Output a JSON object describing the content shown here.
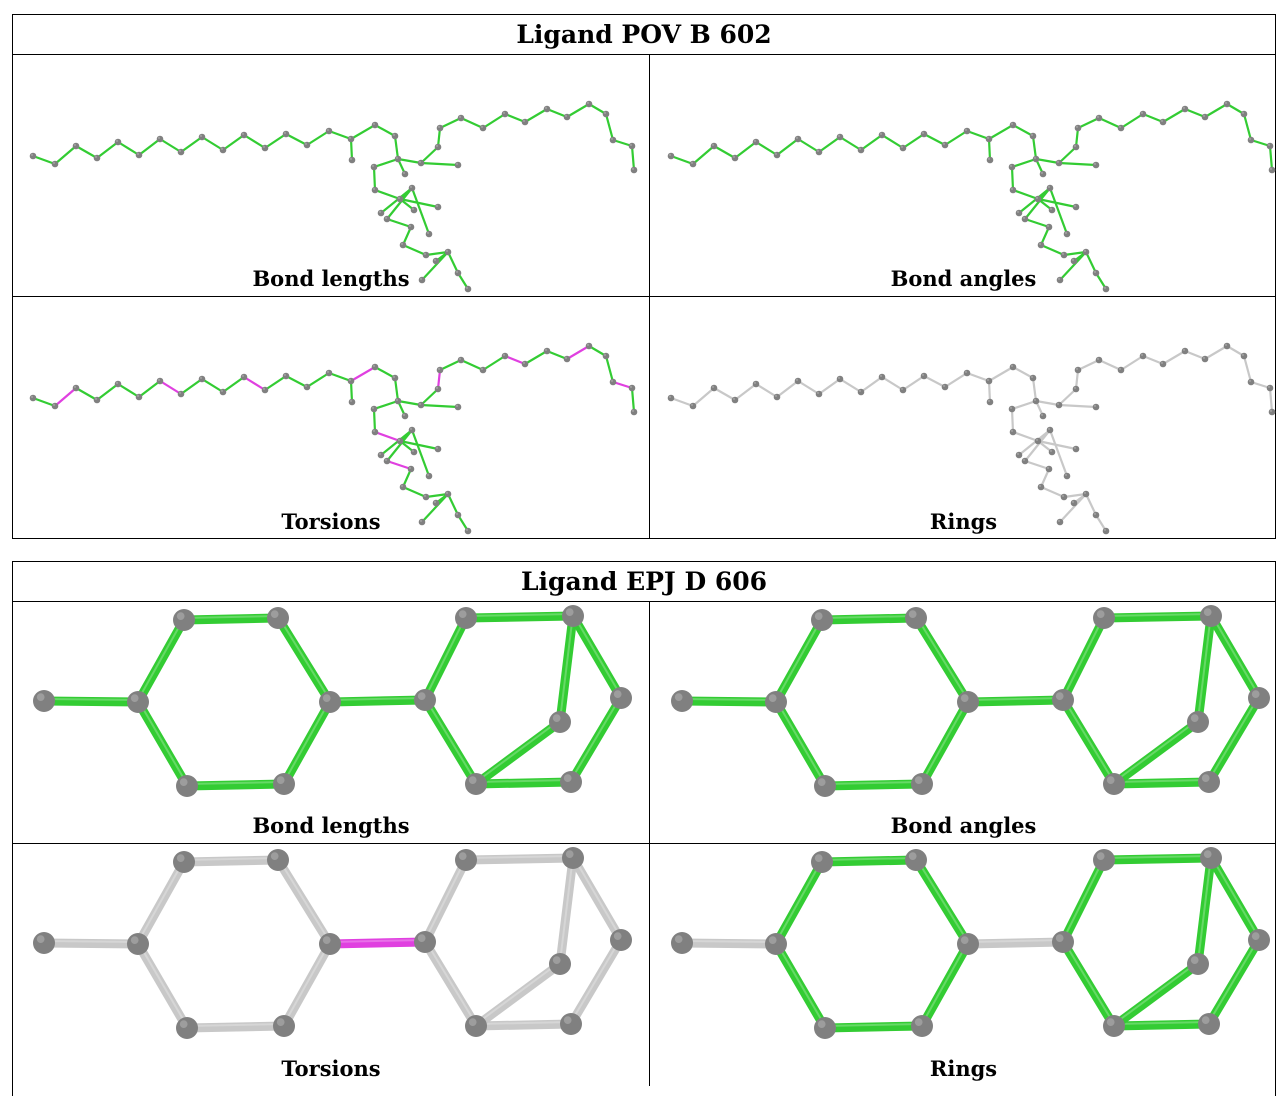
{
  "tables": [
    {
      "title": "Ligand POV B 602",
      "panels": [
        {
          "caption": "Bond lengths",
          "mode": "all"
        },
        {
          "caption": "Bond angles",
          "mode": "all"
        },
        {
          "caption": "Torsions",
          "mode": "torsion"
        },
        {
          "caption": "Rings",
          "mode": "none"
        }
      ]
    },
    {
      "title": "Ligand EPJ D 606",
      "panels": [
        {
          "caption": "Bond lengths",
          "mode": "all"
        },
        {
          "caption": "Bond angles",
          "mode": "all"
        },
        {
          "caption": "Torsions",
          "mode": "torsion"
        },
        {
          "caption": "Rings",
          "mode": "rings"
        }
      ]
    }
  ],
  "colors": {
    "ok_bond": "#33cc33",
    "torsion_outlier": "#e040e0",
    "neutral_bond": "#c8c8c8",
    "atom": "#808080"
  }
}
